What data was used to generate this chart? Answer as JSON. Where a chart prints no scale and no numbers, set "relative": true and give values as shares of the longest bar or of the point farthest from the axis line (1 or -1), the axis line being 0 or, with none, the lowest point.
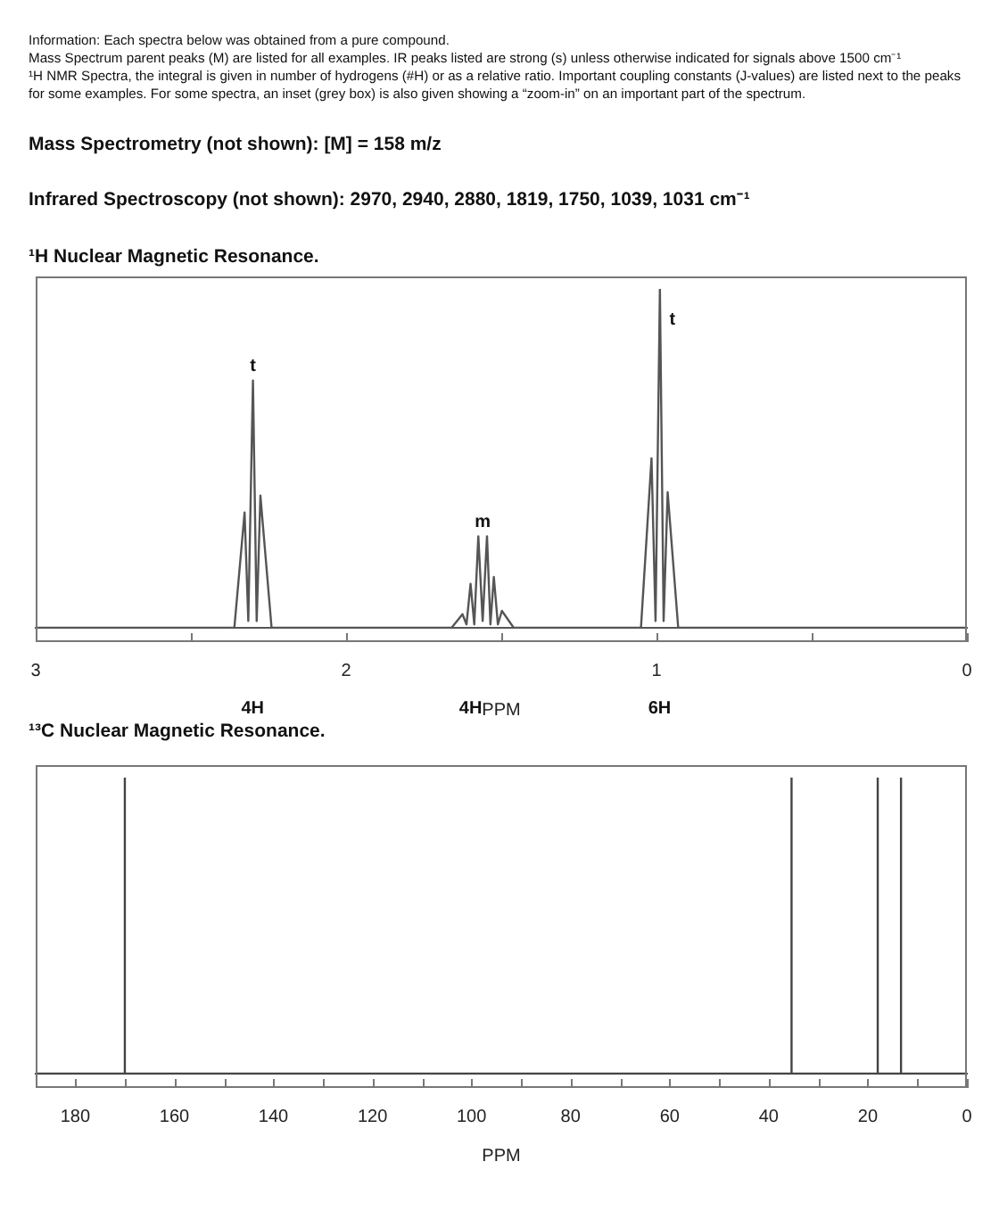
{
  "chart_data": [
    {
      "type": "other",
      "annotations": [
        "Information:  Each spectra below was obtained from a pure compound.",
        "Mass Spectrum parent peaks (M) are listed for all examples.  IR peaks listed are strong (s) unless otherwise indicated for signals above 1500 cm⁻¹",
        "¹H NMR Spectra, the integral is given in number of hydrogens (#H) or as a relative ratio. Important coupling constants (J-values) are listed next to the peaks for some examples. For some spectra, an inset (grey box) is also given showing a “zoom-in” on an important part of the spectrum.",
        "Mass Spectrometry (not shown):  [M] = 158 m/z",
        "Infrared Spectroscopy (not shown):  2970, 2940, 2880, 1819, 1750, 1039, 1031 cm⁻¹"
      ]
    },
    {
      "type": "line",
      "title": "¹H Nuclear Magnetic Resonance.",
      "xlabel": "PPM",
      "relative": true,
      "color": "#555555",
      "marker": "none",
      "x": [
        3,
        2.36,
        2.327,
        2.315,
        2.3,
        2.288,
        2.276,
        2.24,
        1.66,
        1.625,
        1.612,
        1.599,
        1.587,
        1.574,
        1.56,
        1.546,
        1.535,
        1.524,
        1.511,
        1.498,
        1.46,
        1.05,
        1.016,
        1.003,
        0.989,
        0.977,
        0.964,
        0.93,
        0
      ],
      "values": [
        0,
        0,
        0.34,
        0.02,
        0.73,
        0.02,
        0.39,
        0,
        0,
        0.04,
        0.01,
        0.13,
        0.01,
        0.27,
        0.02,
        0.27,
        0.01,
        0.15,
        0.01,
        0.05,
        0,
        0,
        0.5,
        0.02,
        1,
        0.02,
        0.4,
        0,
        0
      ],
      "xlim": [
        3,
        0
      ],
      "xticks": [
        3,
        {
          "value": 2.5,
          "label": null
        },
        2,
        {
          "value": 1.5,
          "label": null
        },
        1,
        {
          "value": 0.5,
          "label": null
        },
        0
      ],
      "annotations": [
        {
          "text": "t",
          "x": 2.3,
          "y": 0.73
        },
        {
          "text": "m",
          "x": 1.56,
          "y": 0.27
        },
        {
          "text": "t",
          "x": 0.989,
          "y": 1
        },
        "4H",
        "4H",
        "6H"
      ]
    },
    {
      "type": "line",
      "title": "¹³C Nuclear Magnetic Resonance.",
      "xlabel": "PPM",
      "relative": true,
      "color": "#444444",
      "marker": "none",
      "x": [
        188,
        170,
        170,
        170,
        35.4,
        35.4,
        35.4,
        18,
        18,
        18,
        13.3,
        13.3,
        13.3,
        0
      ],
      "values": [
        0,
        0,
        1,
        0,
        0,
        1,
        0,
        0,
        1,
        0,
        0,
        1,
        0,
        0
      ],
      "xlim": [
        188,
        0
      ],
      "xticks": [
        180,
        {
          "value": 170,
          "label": null
        },
        160,
        {
          "value": 150,
          "label": null
        },
        140,
        {
          "value": 130,
          "label": null
        },
        120,
        {
          "value": 110,
          "label": null
        },
        100,
        {
          "value": 90,
          "label": null
        },
        80,
        {
          "value": 70,
          "label": null
        },
        60,
        {
          "value": 50,
          "label": null
        },
        40,
        {
          "value": 30,
          "label": null
        },
        20,
        {
          "value": 10,
          "label": null
        },
        0
      ]
    }
  ]
}
